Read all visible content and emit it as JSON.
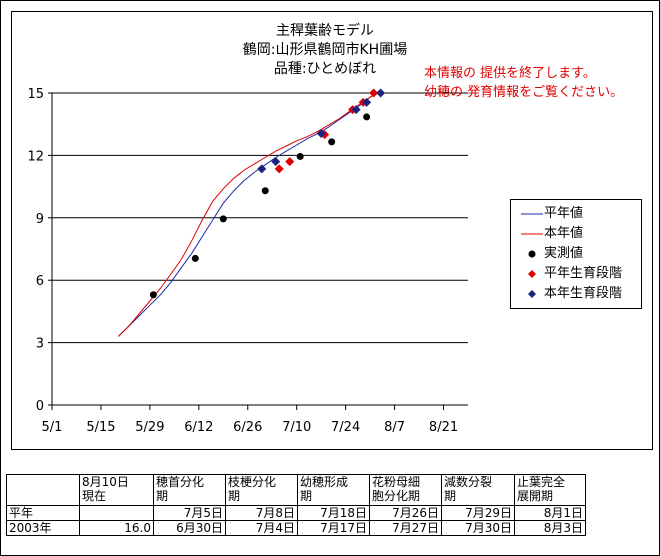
{
  "titles": [
    "主稈葉齢モデル",
    "鶴岡:山形県鶴岡市KH圃場",
    "品種:ひとめぼれ"
  ],
  "notice": [
    "本情報の 提供を終了します。",
    "幼穂の 発育情報をご覧ください。"
  ],
  "colors": {
    "normal_line": "#1a2aa0",
    "current_line": "#e00000",
    "observed": "#000000",
    "normal_stage": "#e00000",
    "current_stage": "#1a237e",
    "notice": "#e00000"
  },
  "chart_data": {
    "type": "line",
    "title": "",
    "xlabel": "",
    "ylabel": "",
    "ylim": [
      0,
      15
    ],
    "yticks": [
      0,
      3,
      6,
      9,
      12,
      15
    ],
    "xlim": [
      "5/1",
      "8/28"
    ],
    "xtick_labels": [
      "5/1",
      "5/15",
      "5/29",
      "6/12",
      "6/26",
      "7/10",
      "7/24",
      "8/7",
      "8/21"
    ],
    "grid": "horizontal",
    "legend_position": "right",
    "legend": [
      "平年値",
      "本年値",
      "実測値",
      "平年生育段階",
      "本年生育段階"
    ],
    "series": [
      {
        "name": "平年値",
        "type": "line",
        "x": [
          "5/20",
          "5/23",
          "5/26",
          "5/29",
          "6/1",
          "6/4",
          "6/7",
          "6/10",
          "6/13",
          "6/16",
          "6/19",
          "6/22",
          "6/25",
          "6/28",
          "7/1",
          "7/4",
          "7/7",
          "7/10",
          "7/13",
          "7/16",
          "7/19",
          "7/22",
          "7/25",
          "7/28",
          "7/31",
          "8/2"
        ],
        "y": [
          3.3,
          3.8,
          4.3,
          4.8,
          5.3,
          5.9,
          6.6,
          7.3,
          8.1,
          8.9,
          9.7,
          10.3,
          10.8,
          11.2,
          11.55,
          11.9,
          12.2,
          12.5,
          12.8,
          13.05,
          13.35,
          13.7,
          14.05,
          14.4,
          14.8,
          15.0
        ]
      },
      {
        "name": "本年値",
        "type": "line",
        "x": [
          "5/20",
          "5/23",
          "5/26",
          "5/29",
          "6/1",
          "6/4",
          "6/7",
          "6/10",
          "6/13",
          "6/16",
          "6/19",
          "6/22",
          "6/25",
          "6/28",
          "7/1",
          "7/4",
          "7/7",
          "7/10",
          "7/13",
          "7/16",
          "7/19",
          "7/22",
          "7/25",
          "7/28",
          "7/31",
          "8/2"
        ],
        "y": [
          3.3,
          3.8,
          4.4,
          5.0,
          5.6,
          6.3,
          7.0,
          7.9,
          8.9,
          9.8,
          10.4,
          10.9,
          11.3,
          11.6,
          11.9,
          12.2,
          12.45,
          12.7,
          12.9,
          13.15,
          13.45,
          13.75,
          14.1,
          14.45,
          14.8,
          15.0
        ]
      },
      {
        "name": "実測値",
        "type": "scatter",
        "marker": "circle",
        "x": [
          "5/30",
          "6/11",
          "6/19",
          "7/1",
          "7/11",
          "7/20",
          "7/30"
        ],
        "y": [
          5.3,
          7.05,
          8.95,
          10.3,
          11.95,
          12.65,
          13.85
        ]
      },
      {
        "name": "平年生育段階",
        "type": "scatter",
        "marker": "diamond",
        "x": [
          "7/5",
          "7/8",
          "7/18",
          "7/26",
          "7/29",
          "8/1"
        ],
        "y": [
          11.35,
          11.7,
          13.0,
          14.2,
          14.55,
          15.0
        ]
      },
      {
        "name": "本年生育段階",
        "type": "scatter",
        "marker": "diamond",
        "x": [
          "6/30",
          "7/4",
          "7/17",
          "7/27",
          "7/30",
          "8/3"
        ],
        "y": [
          11.35,
          11.7,
          13.05,
          14.2,
          14.55,
          15.0
        ]
      }
    ]
  },
  "table": {
    "header": [
      "",
      "8月10日\n現在",
      "穂首分化\n期",
      "枝梗分化\n期",
      "幼穂形成\n期",
      "花粉母細\n胞分化期",
      "減数分裂\n期",
      "止葉完全\n展開期"
    ],
    "rows": [
      [
        "平年",
        "",
        "7月5日",
        "7月8日",
        "7月18日",
        "7月26日",
        "7月29日",
        "8月1日"
      ],
      [
        "2003年",
        "16.0",
        "6月30日",
        "7月4日",
        "7月17日",
        "7月27日",
        "7月30日",
        "8月3日"
      ]
    ]
  }
}
